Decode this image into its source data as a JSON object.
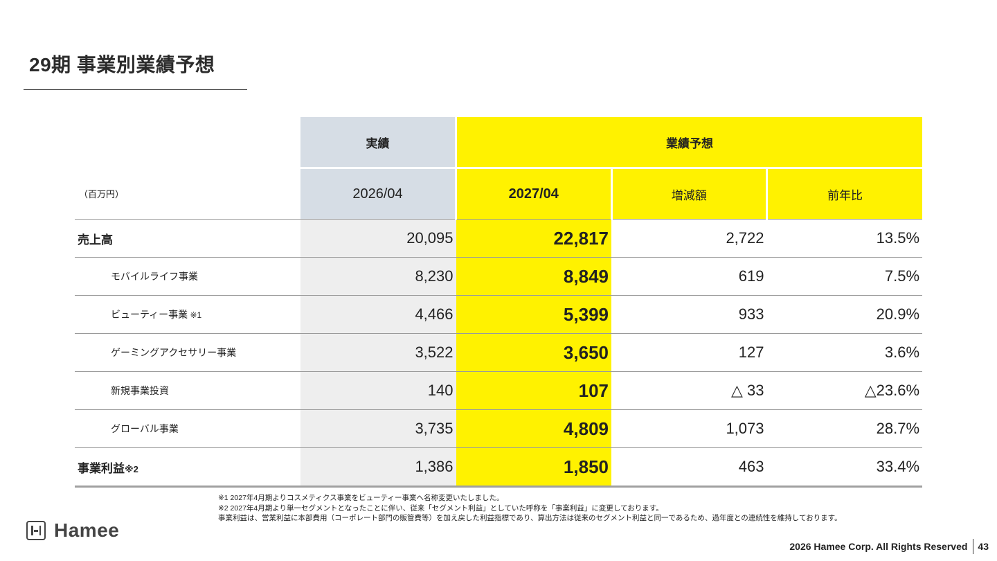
{
  "title": "29期 事業別業績予想",
  "table": {
    "header_group": {
      "actual": "実績",
      "forecast": "業績予想"
    },
    "unit": "（百万円）",
    "columns": {
      "actual_period": "2026/04",
      "forecast_period": "2027/04",
      "change": "増減額",
      "yoy": "前年比"
    },
    "rows": [
      {
        "label": "売上高",
        "note": "",
        "actual": "20,095",
        "forecast": "22,817",
        "change": "2,722",
        "yoy": "13.5%"
      },
      {
        "label": "モバイルライフ事業",
        "note": "",
        "actual": "8,230",
        "forecast": "8,849",
        "change": "619",
        "yoy": "7.5%"
      },
      {
        "label": "ビューティー事業",
        "note": " ※1",
        "actual": "4,466",
        "forecast": "5,399",
        "change": "933",
        "yoy": "20.9%"
      },
      {
        "label": "ゲーミングアクセサリー事業",
        "note": "",
        "actual": "3,522",
        "forecast": "3,650",
        "change": "127",
        "yoy": "3.6%"
      },
      {
        "label": "新規事業投資",
        "note": "",
        "actual": "140",
        "forecast": "107",
        "change": "△ 33",
        "yoy": "△23.6%"
      },
      {
        "label": "グローバル事業",
        "note": "",
        "actual": "3,735",
        "forecast": "4,809",
        "change": "1,073",
        "yoy": "28.7%"
      },
      {
        "label": "事業利益",
        "note": "※2",
        "actual": "1,386",
        "forecast": "1,850",
        "change": "463",
        "yoy": "33.4%"
      }
    ]
  },
  "notes": [
    "※1 2027年4月期よりコスメティクス事業をビューティー事業へ名称変更いたしました。",
    "※2 2027年4月期より単一セグメントとなったことに伴い、従来「セグメント利益」としていた呼称を「事業利益」に変更しております。",
    "事業利益は、営業利益に本部費用（コーポレート部門の販管費等）を加え戻した利益指標であり、算出方法は従来のセグメント利益と同一であるため、過年度との連続性を維持しております。"
  ],
  "logo_text": "Hamee",
  "footer": {
    "copyright": "2026 Hamee Corp. All Rights Reserved",
    "page": "43"
  }
}
